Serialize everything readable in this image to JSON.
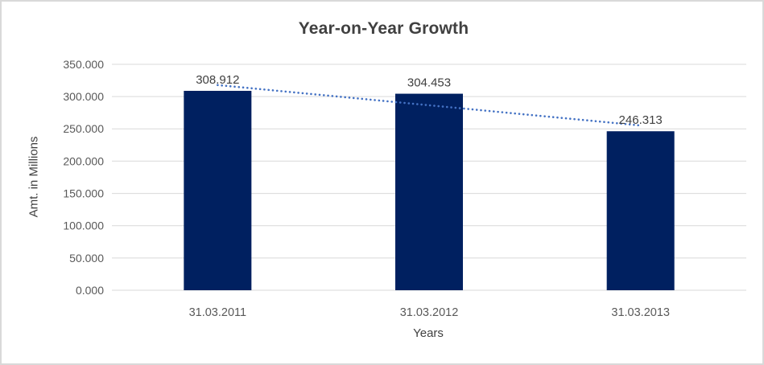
{
  "chart_data": {
    "type": "bar",
    "title": "Year-on-Year Growth",
    "xlabel": "Years",
    "ylabel": "Amt. in Millions",
    "categories": [
      "31.03.2011",
      "31.03.2012",
      "31.03.2013"
    ],
    "values": [
      308.912,
      304.453,
      246.313
    ],
    "value_labels": [
      "308.912",
      "304.453",
      "246.313"
    ],
    "ylim": [
      0,
      350
    ],
    "ytick_step": 50,
    "ytick_labels": [
      "0.000",
      "50.000",
      "100.000",
      "150.000",
      "200.000",
      "250.000",
      "300.000",
      "350.000"
    ],
    "grid": true,
    "legend": "none",
    "trendline": {
      "type": "linear",
      "style": "round-dot",
      "color": "#4472C4"
    },
    "colors": {
      "bar": "#002060",
      "gridline": "#d9d9d9",
      "axis_line": "#d9d9d9",
      "chart_border": "#d9d9d9",
      "background": "#ffffff",
      "title_text": "#404040",
      "axis_title_text": "#404040",
      "tick_text": "#595959",
      "data_label_text": "#404040",
      "trendline": "#4472C4"
    }
  }
}
